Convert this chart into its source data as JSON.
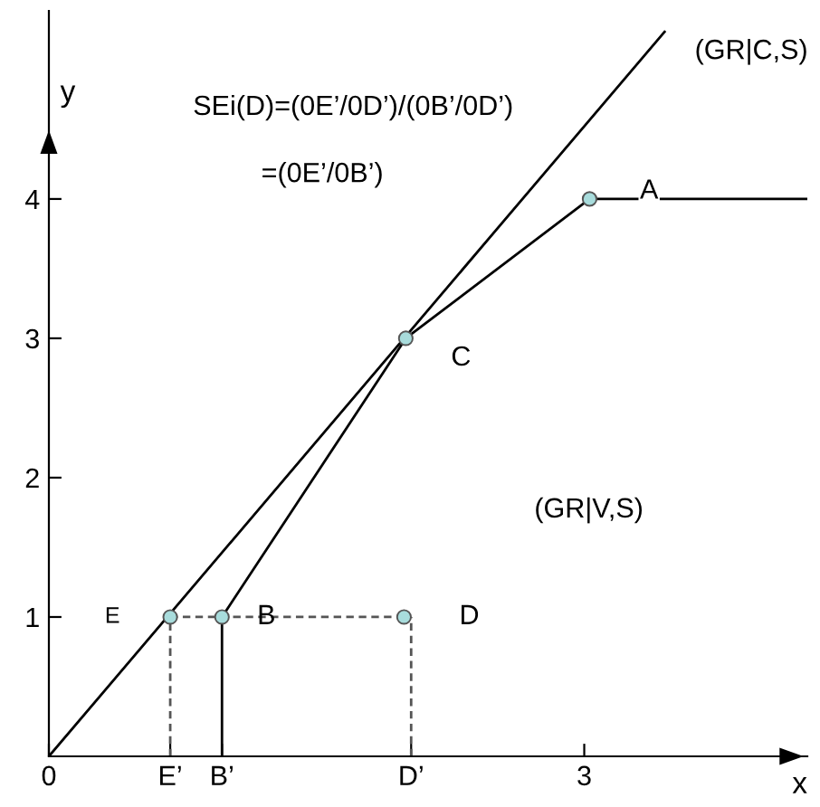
{
  "chart_data": {
    "type": "line",
    "xlabel": "x",
    "ylabel": "y",
    "xlim": [
      0,
      4.25
    ],
    "ylim": [
      0,
      5.35
    ],
    "xticks": [
      0,
      {
        "value": 0.68,
        "label": "E’"
      },
      {
        "value": 0.97,
        "label": "B’"
      },
      {
        "value": 2.03,
        "label": "D’"
      },
      3
    ],
    "yticks": [
      1,
      2,
      3,
      4
    ],
    "grid": false,
    "tick_labels": "xy",
    "series": [
      {
        "color": "#000000",
        "line_style": "solid",
        "marker": "none",
        "x": [
          0,
          3.45
        ],
        "values": [
          0,
          5.2
        ]
      },
      {
        "color": "#000000",
        "line_style": "solid",
        "marker": "none",
        "x": [
          0.97,
          0.97,
          2,
          3.03,
          4.25
        ],
        "values": [
          0,
          1,
          3,
          4,
          4
        ]
      },
      {
        "color": "#555555",
        "line_style": "dashed",
        "marker": "none",
        "x": [
          0.68,
          0.68
        ],
        "values": [
          0,
          1
        ]
      },
      {
        "color": "#555555",
        "line_style": "dashed",
        "marker": "none",
        "x": [
          0.68,
          2.03
        ],
        "values": [
          1,
          1
        ]
      },
      {
        "color": "#555555",
        "line_style": "dashed",
        "marker": "none",
        "x": [
          2.03,
          2.03
        ],
        "values": [
          0,
          1
        ]
      },
      {
        "type": "scatter",
        "color": "#a8dcdc",
        "marker": "circle",
        "x": [
          0.68,
          0.97,
          1.99,
          2,
          3.03
        ],
        "values": [
          1,
          1,
          1,
          3,
          4
        ]
      }
    ],
    "annotations": [
      {
        "text": "E",
        "x": 0.68,
        "y": 1
      },
      {
        "text": "B",
        "x": 0.97,
        "y": 1
      },
      {
        "text": "D",
        "x": 1.99,
        "y": 1
      },
      {
        "text": "C",
        "x": 2,
        "y": 3
      },
      {
        "text": "A",
        "x": 3.03,
        "y": 4
      },
      {
        "text": "(GR|C,S)",
        "x": 3.45,
        "y": 5.2
      },
      "(GR|V,S)",
      "SEi(D)=(0E’/0D’)/(0B’/0D’)",
      "=(0E’/0B’)"
    ]
  }
}
